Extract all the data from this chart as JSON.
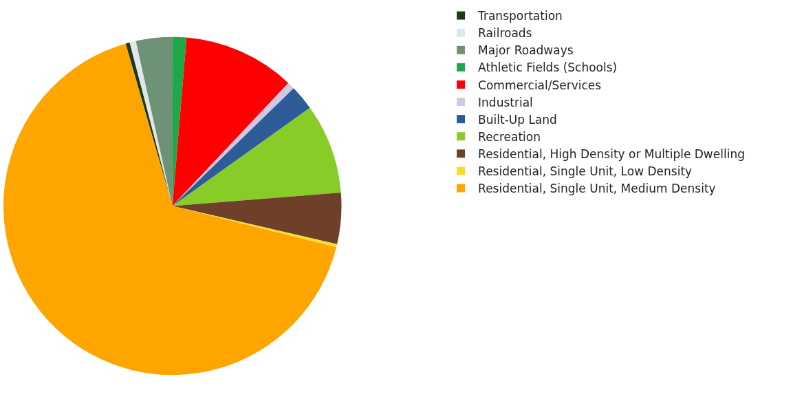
{
  "chart_data": {
    "type": "pie",
    "categories": [
      "Transportation",
      "Railroads",
      "Major Roadways",
      "Athletic Fields (Schools)",
      "Commercial/Services",
      "Industrial",
      "Built-Up Land",
      "Recreation",
      "Residential, High Density or Multiple Dwelling",
      "Residential, Single Unit, Low Density",
      "Residential, Single Unit, Medium Density"
    ],
    "values": [
      0.4,
      0.6,
      3.5,
      1.3,
      10.7,
      0.7,
      2.4,
      8.6,
      4.9,
      0.3,
      66.6
    ],
    "colors": [
      "#1f3a1a",
      "#dfe7ea",
      "#6e9276",
      "#1ea84a",
      "#ff0000",
      "#d3c8e3",
      "#2e5c99",
      "#87cc27",
      "#6e3f29",
      "#f7dc2a",
      "#ffa500"
    ],
    "legend": "right"
  }
}
